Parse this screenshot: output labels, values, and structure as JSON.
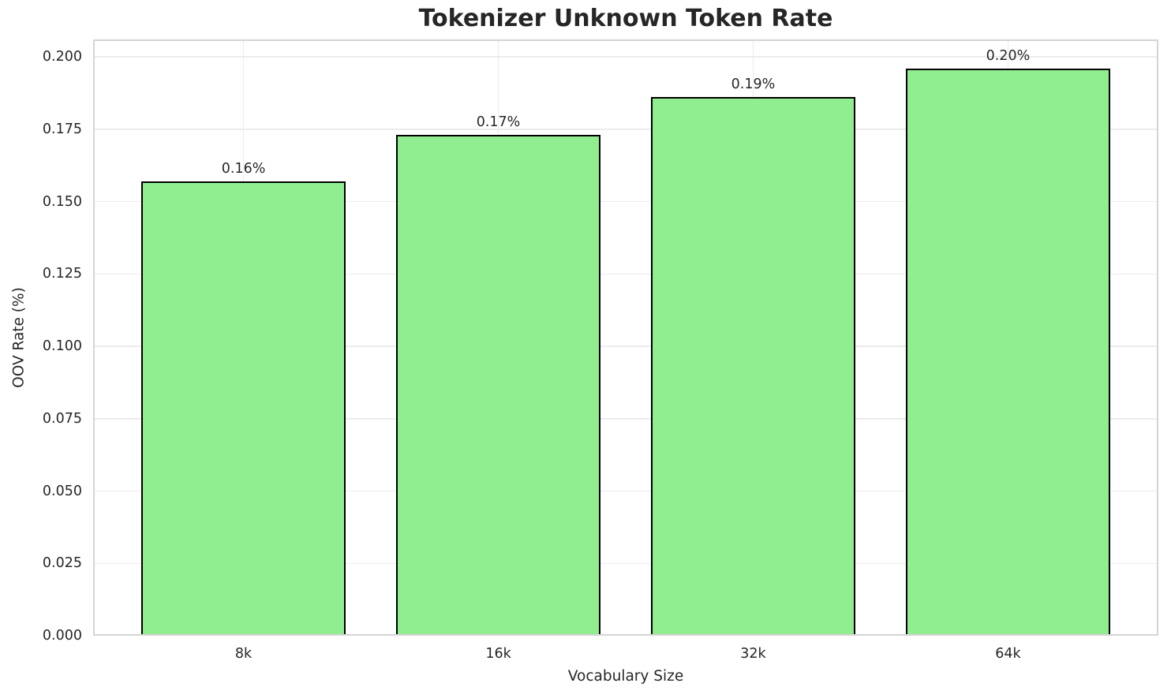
{
  "chart_data": {
    "type": "bar",
    "title": "Tokenizer Unknown Token Rate",
    "xlabel": "Vocabulary Size",
    "ylabel": "OOV Rate (%)",
    "categories": [
      "8k",
      "16k",
      "32k",
      "64k"
    ],
    "values": [
      0.157,
      0.173,
      0.186,
      0.196
    ],
    "bar_labels": [
      "0.16%",
      "0.17%",
      "0.19%",
      "0.20%"
    ],
    "ytick_labels": [
      "0.000",
      "0.025",
      "0.050",
      "0.075",
      "0.100",
      "0.125",
      "0.150",
      "0.175",
      "0.200"
    ],
    "yticks": [
      0.0,
      0.025,
      0.05,
      0.075,
      0.1,
      0.125,
      0.15,
      0.175,
      0.2
    ],
    "ylim": [
      0,
      0.206
    ],
    "xlim": [
      -0.59,
      3.59
    ],
    "bar_width_data_units": 0.8,
    "grid": true,
    "legend": "none",
    "colors": {
      "bar_fill": "#90EE90",
      "bar_edge": "#000000",
      "grid": "#ececec",
      "spine": "#d4d4d4",
      "text": "#262626",
      "background": "#ffffff"
    }
  }
}
